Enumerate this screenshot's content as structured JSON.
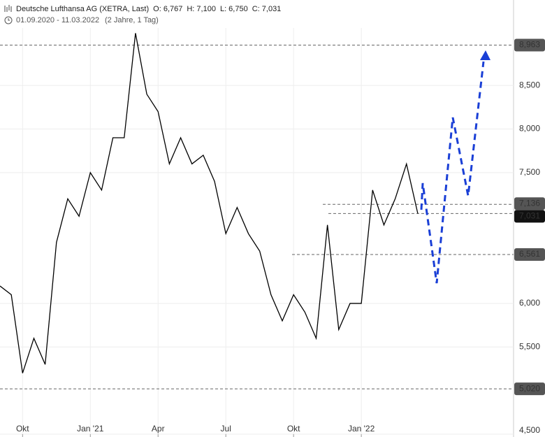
{
  "chart_data": {
    "type": "line",
    "title": "Deutsche Lufthansa AG (XETRA, Last)",
    "ohlc": [
      {
        "label": "O: 6,767",
        "value": 6.767
      },
      {
        "label": "H: 7,100",
        "value": 7.1
      },
      {
        "label": "L: 6,750",
        "value": 6.75
      },
      {
        "label": "C: 7,031",
        "value": 7.031
      }
    ],
    "subtitle": "01.09.2020 - 11.03.2022",
    "period": "(2 Jahre, 1 Tag)",
    "categories": [
      null,
      null,
      "Okt",
      null,
      null,
      null,
      null,
      null,
      "Jan '21",
      null,
      null,
      null,
      null,
      null,
      "Apr",
      null,
      null,
      null,
      null,
      null,
      "Jul",
      null,
      null,
      null,
      null,
      null,
      "Okt",
      null,
      null,
      null,
      null,
      null,
      "Jan '22",
      null,
      null,
      null,
      null,
      null
    ],
    "series": [
      {
        "name": "Deutsche Lufthansa AG",
        "color": "#000000",
        "values": [
          6.2,
          6.1,
          5.2,
          5.6,
          5.3,
          6.7,
          7.2,
          7.0,
          7.5,
          7.3,
          7.9,
          7.9,
          9.1,
          8.4,
          8.2,
          7.6,
          7.9,
          7.6,
          7.7,
          7.4,
          6.8,
          7.1,
          6.8,
          6.6,
          6.1,
          5.8,
          6.1,
          5.9,
          5.6,
          6.9,
          5.7,
          6.0,
          6.0,
          7.3,
          6.9,
          7.2,
          7.6,
          7.031
        ]
      }
    ],
    "ylim": [
      4.5,
      9.48
    ],
    "yticks": [
      {
        "value": 4.5,
        "label": "4,500"
      },
      {
        "value": 5.5,
        "label": "5,500"
      },
      {
        "value": 6.0,
        "label": "6,000"
      },
      {
        "value": 7.5,
        "label": "7,500"
      },
      {
        "value": 8.0,
        "label": "8,000"
      },
      {
        "value": 8.5,
        "label": "8,500"
      }
    ],
    "reference_lines": [
      {
        "value": 8.963,
        "label": "8,963"
      },
      {
        "value": 7.136,
        "label": "7,136"
      },
      {
        "value": 7.031,
        "label": "7,031"
      },
      {
        "value": 6.561,
        "label": "6,561"
      },
      {
        "value": 5.02,
        "label": "5,020"
      }
    ],
    "grid": true
  }
}
